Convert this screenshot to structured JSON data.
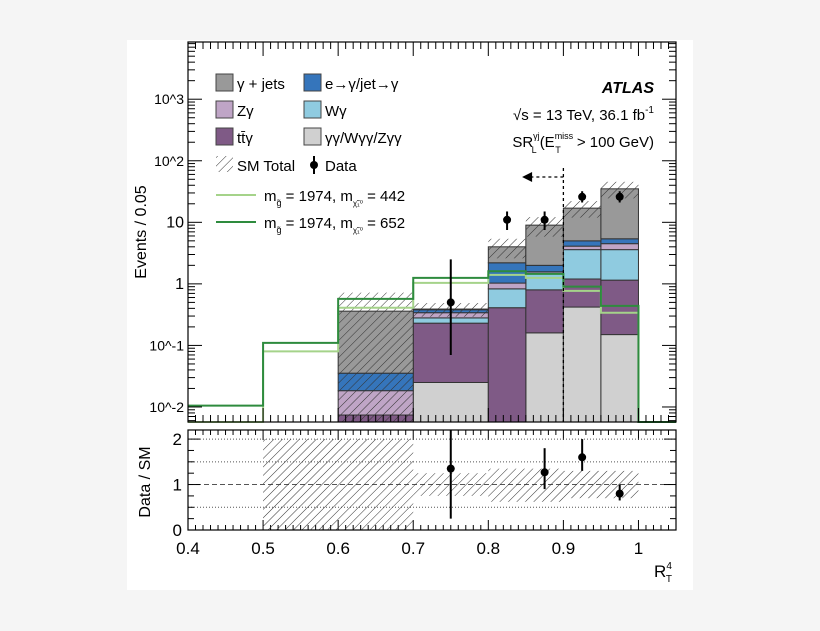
{
  "chart_data": [
    {
      "type": "bar",
      "stacked": true,
      "ylabel": "Events / 0.05",
      "yscale": "log",
      "ylim": [
        0.0057,
        8500
      ],
      "xlim": [
        0.4,
        1.05
      ],
      "ytick_labels": [
        "10^-2",
        "10^-1",
        "1",
        "10",
        "10^2",
        "10^3"
      ],
      "bin_edges": [
        0.6,
        0.7,
        0.8,
        0.85,
        0.9,
        0.95,
        1.0
      ],
      "series": [
        {
          "name": "γγ/Wγγ/Zγγ",
          "color": "#d0d0d0",
          "values": [
            0,
            0.025,
            0,
            0.16,
            0.42,
            0.15
          ]
        },
        {
          "name": "tt̄γ",
          "color": "#7f5a86",
          "values": [
            0.0074,
            0.205,
            0.41,
            0.64,
            0.78,
            1.0
          ]
        },
        {
          "name": "Wγ",
          "color": "#8fcbe0",
          "values": [
            0,
            0.05,
            0.42,
            0.65,
            2.4,
            2.45
          ]
        },
        {
          "name": "Zγ",
          "color": "#bfa5c6",
          "values": [
            0.011,
            0.06,
            0.2,
            0.12,
            0.5,
            0.9
          ]
        },
        {
          "name": "e→γ/jet→γ",
          "color": "#3575bb",
          "values": [
            0.017,
            0.04,
            1.17,
            0.43,
            0.9,
            0.9
          ]
        },
        {
          "name": "γ + jets",
          "color": "#999999",
          "values": [
            0.325,
            0.01,
            1.8,
            7.0,
            12.0,
            29.6
          ]
        }
      ],
      "sm_total_label": "SM Total",
      "sm_rel_uncertainty": [
        1.0,
        0.25,
        0.35,
        0.35,
        0.3,
        0.3
      ],
      "data": {
        "name": "Data",
        "x": [
          0.75,
          0.825,
          0.875,
          0.925,
          0.975
        ],
        "y": [
          0.5,
          11,
          11,
          26,
          26
        ],
        "yerr_low": [
          0.07,
          7.5,
          7.5,
          21,
          21
        ],
        "yerr_high": [
          2.5,
          15,
          15,
          32,
          32
        ]
      },
      "signals": [
        {
          "name": "m_g̃ = 1974, m_χ̃₁⁰ = 442",
          "label_main": "m",
          "sub_g": "g̃",
          "mid": " = 1974, m",
          "sub_chi": "χ̃₁⁰",
          "end": " =  442",
          "color": "#a5d38a",
          "bin_edges": [
            0.4,
            0.5,
            0.6,
            0.7,
            0.8,
            0.85,
            0.9,
            0.95,
            1.0,
            1.05
          ],
          "values": [
            0,
            0.08,
            0.41,
            1.04,
            1.4,
            1.25,
            0.77,
            0.34,
            0
          ]
        },
        {
          "name": "m_g̃ = 1974, m_χ̃₁⁰ = 652",
          "label_main": "m",
          "sub_g": "g̃",
          "mid": " = 1974, m",
          "sub_chi": "χ̃₁⁰",
          "end": " =  652",
          "color": "#2e8b3e",
          "bin_edges": [
            0.4,
            0.5,
            0.6,
            0.7,
            0.8,
            0.85,
            0.9,
            0.95,
            1.0,
            1.05
          ],
          "values": [
            0.0105,
            0.11,
            0.57,
            1.25,
            1.6,
            1.45,
            0.9,
            0.44,
            0
          ]
        }
      ],
      "cut_line_x": 0.9,
      "annotations": {
        "experiment": "ATLAS",
        "energy": "√s = 13 TeV, 36.1 fb",
        "energy_sup": "-1",
        "region": "SR",
        "region_sup": "γj",
        "region_sub": "L",
        "region_cut_pre": "(E",
        "region_cut_sup": "miss",
        "region_cut_sub": "T",
        "region_cut_post": " > 100 GeV)"
      },
      "legend_placement": "top-left"
    },
    {
      "type": "scatter",
      "ylabel": "Data / SM",
      "xlabel": "R",
      "xlabel_sup": "4",
      "xlabel_sub": "T",
      "ylim": [
        0,
        2.2
      ],
      "xlim": [
        0.4,
        1.05
      ],
      "yticks": [
        "0",
        "1",
        "2"
      ],
      "xticks": [
        "0.4",
        "0.5",
        "0.6",
        "0.7",
        "0.8",
        "0.9",
        "1"
      ],
      "gridlines_y": [
        0.5,
        1,
        1.5,
        2
      ],
      "ratio": {
        "x": [
          0.75,
          0.875,
          0.925,
          0.975
        ],
        "y": [
          1.35,
          1.27,
          1.6,
          0.8
        ],
        "yerr_low": [
          0.25,
          0.9,
          1.3,
          0.65
        ],
        "yerr_high": [
          2.2,
          1.8,
          2.0,
          1.0
        ]
      },
      "uncertainty_band": {
        "bin_edges": [
          0.5,
          0.6,
          0.7,
          0.8,
          0.85,
          0.9,
          0.95,
          1.0
        ],
        "low": [
          0,
          0,
          0.75,
          0.62,
          0.62,
          0.7,
          0.7
        ],
        "high": [
          2,
          2,
          1.25,
          1.35,
          1.35,
          1.3,
          1.3
        ]
      }
    }
  ]
}
